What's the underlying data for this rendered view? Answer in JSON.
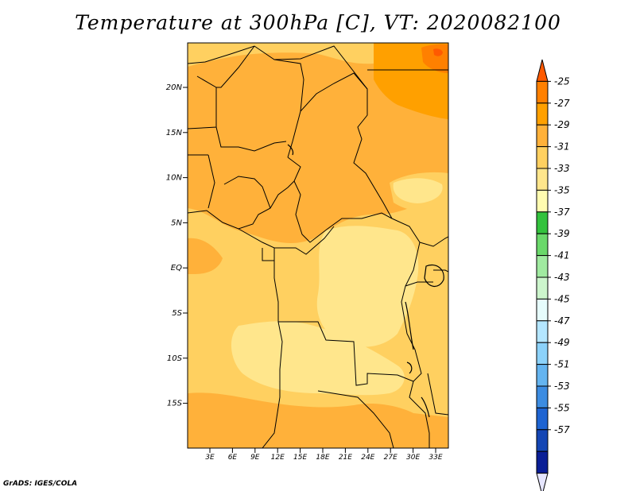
{
  "title": "Temperature at 300hPa [C], VT: 2020082100",
  "credit": "GrADS: IGES/COLA",
  "map": {
    "lat_labels": [
      "20N",
      "15N",
      "10N",
      "5N",
      "EQ",
      "5S",
      "10S",
      "15S"
    ],
    "lon_labels": [
      "3E",
      "6E",
      "9E",
      "12E",
      "15E",
      "18E",
      "21E",
      "24E",
      "27E",
      "30E",
      "33E"
    ]
  },
  "colorbar": {
    "labels": [
      "-25",
      "-27",
      "-29",
      "-31",
      "-33",
      "-35",
      "-37",
      "-39",
      "-41",
      "-43",
      "-45",
      "-47",
      "-49",
      "-51",
      "-53",
      "-55",
      "-57"
    ],
    "colors": [
      "#ff5a00",
      "#ff8000",
      "#ffa000",
      "#ffb13a",
      "#ffd060",
      "#ffe68c",
      "#fffcb0",
      "#33c23d",
      "#6ad86a",
      "#a0eaa0",
      "#ccf5cc",
      "#e6fcfc",
      "#b4e6ff",
      "#8cd2fa",
      "#64b4f0",
      "#3c8ce1",
      "#1e64d2",
      "#1446b4",
      "#0a1e96",
      "#e6e6ff"
    ]
  }
}
